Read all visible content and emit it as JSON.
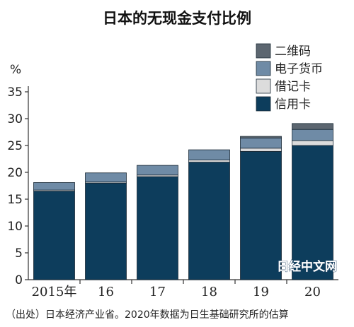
{
  "title": "日本的无现金支付比例",
  "unit": "%",
  "source_note": "（出处）日本经济产业省。2020年数据为日生基础研究所的估算",
  "watermark": "日经中文网",
  "chart_data": {
    "type": "bar",
    "stacked": true,
    "categories": [
      "2015年",
      "16",
      "17",
      "18",
      "19",
      "20"
    ],
    "series": [
      {
        "name": "信用卡",
        "color": "#0d3d5c",
        "values": [
          16.5,
          18.0,
          19.2,
          21.9,
          23.9,
          25.0
        ]
      },
      {
        "name": "借记卡",
        "color": "#dcdcdc",
        "values": [
          0.2,
          0.2,
          0.3,
          0.4,
          0.6,
          0.9
        ]
      },
      {
        "name": "电子货币",
        "color": "#6f8ba6",
        "values": [
          1.4,
          1.7,
          1.8,
          1.9,
          1.9,
          2.1
        ]
      },
      {
        "name": "二维码",
        "color": "#5c6670",
        "values": [
          0,
          0,
          0,
          0,
          0.3,
          1.1
        ]
      }
    ],
    "legend_order": [
      "二维码",
      "电子货币",
      "借记卡",
      "信用卡"
    ],
    "legend_position": "top-right",
    "ylim": [
      0,
      35
    ],
    "yticks": [
      0,
      5,
      10,
      15,
      20,
      25,
      30,
      35
    ],
    "grid": false
  }
}
